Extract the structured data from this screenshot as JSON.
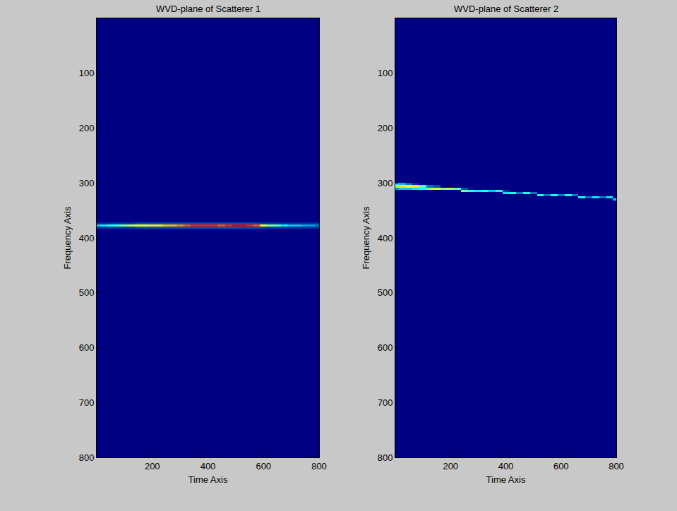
{
  "chart_data": [
    {
      "type": "heatmap",
      "title": "WVD-plane of Scatterer 1",
      "xlabel": "Time Axis",
      "ylabel": "Frequency Axis",
      "x": [
        0,
        25,
        50,
        75,
        100,
        125,
        150,
        175,
        200,
        225,
        250,
        275,
        300,
        325,
        350,
        375,
        400,
        425,
        450,
        475,
        500,
        525,
        550,
        575,
        600,
        625,
        650,
        675,
        700,
        725,
        750,
        775,
        800
      ],
      "y": [
        374,
        378,
        382
      ],
      "z": [
        [
          0.1,
          0.1,
          0.12,
          0.12,
          0.12,
          0.12,
          0.15,
          0.15,
          0.15,
          0.15,
          0.15,
          0.15,
          0.15,
          0.15,
          0.15,
          0.15,
          0.15,
          0.15,
          0.15,
          0.15,
          0.15,
          0.15,
          0.15,
          0.15,
          0.12,
          0.12,
          0.12,
          0.1,
          0.1,
          0.1,
          0.1,
          0.1,
          0.1
        ],
        [
          0.3,
          0.35,
          0.4,
          0.45,
          0.5,
          0.55,
          0.6,
          0.6,
          0.65,
          0.65,
          0.7,
          0.7,
          0.75,
          0.8,
          0.85,
          0.85,
          0.85,
          0.85,
          0.8,
          0.85,
          0.9,
          0.9,
          0.85,
          0.8,
          0.6,
          0.5,
          0.45,
          0.35,
          0.3,
          0.3,
          0.25,
          0.25,
          0.2
        ],
        [
          0.1,
          0.1,
          0.12,
          0.12,
          0.12,
          0.12,
          0.15,
          0.15,
          0.15,
          0.15,
          0.15,
          0.15,
          0.15,
          0.15,
          0.15,
          0.15,
          0.15,
          0.15,
          0.15,
          0.15,
          0.15,
          0.15,
          0.15,
          0.15,
          0.12,
          0.12,
          0.12,
          0.1,
          0.1,
          0.1,
          0.1,
          0.1,
          0.1
        ]
      ],
      "zlim": [
        0,
        1
      ],
      "xlim": [
        0,
        800
      ],
      "xticks": [
        200,
        400,
        600,
        800
      ],
      "ylim": [
        800,
        0
      ],
      "yticks": [
        100,
        200,
        300,
        400,
        500,
        600,
        700,
        800
      ],
      "grid": false
    },
    {
      "type": "heatmap",
      "title": "WVD-plane of Scatterer 2",
      "xlabel": "Time Axis",
      "ylabel": "Frequency Axis",
      "x": [
        0,
        25,
        50,
        75,
        100,
        125,
        150,
        175,
        200,
        225,
        250,
        275,
        300,
        325,
        350,
        375,
        400,
        425,
        450,
        475,
        500,
        525,
        550,
        575,
        600,
        625,
        650,
        675,
        700,
        725,
        750,
        775,
        800
      ],
      "y": [
        302,
        306,
        310,
        314,
        318,
        322,
        326,
        330
      ],
      "z": [
        [
          0.35,
          0.3,
          0.2,
          0.1,
          0,
          0,
          0,
          0,
          0,
          0,
          0,
          0,
          0,
          0,
          0,
          0,
          0,
          0,
          0,
          0,
          0,
          0,
          0,
          0,
          0,
          0,
          0,
          0,
          0,
          0,
          0,
          0,
          0
        ],
        [
          0.5,
          0.65,
          0.6,
          0.65,
          0.45,
          0.2,
          0.15,
          0,
          0,
          0,
          0,
          0,
          0,
          0,
          0,
          0,
          0,
          0,
          0,
          0,
          0,
          0,
          0,
          0,
          0,
          0,
          0,
          0,
          0,
          0,
          0,
          0,
          0
        ],
        [
          0.25,
          0.3,
          0.3,
          0.35,
          0.4,
          0.55,
          0.6,
          0.5,
          0.55,
          0.45,
          0.15,
          0,
          0,
          0,
          0,
          0,
          0,
          0,
          0,
          0,
          0,
          0,
          0,
          0,
          0,
          0,
          0,
          0,
          0,
          0,
          0,
          0,
          0
        ],
        [
          0,
          0,
          0,
          0,
          0,
          0,
          0,
          0,
          0,
          0,
          0.5,
          0.4,
          0.35,
          0.4,
          0.3,
          0.4,
          0.1,
          0,
          0,
          0,
          0,
          0,
          0,
          0,
          0,
          0,
          0,
          0,
          0,
          0,
          0,
          0,
          0
        ],
        [
          0,
          0,
          0,
          0,
          0,
          0,
          0,
          0,
          0,
          0,
          0,
          0,
          0,
          0,
          0,
          0,
          0.35,
          0.4,
          0.2,
          0.4,
          0.2,
          0,
          0,
          0,
          0,
          0,
          0,
          0,
          0,
          0,
          0,
          0,
          0
        ],
        [
          0,
          0,
          0,
          0,
          0,
          0,
          0,
          0,
          0,
          0,
          0,
          0,
          0,
          0,
          0,
          0,
          0,
          0,
          0,
          0,
          0,
          0.4,
          0.2,
          0.4,
          0.2,
          0.4,
          0.2,
          0,
          0,
          0,
          0,
          0,
          0
        ],
        [
          0,
          0,
          0,
          0,
          0,
          0,
          0,
          0,
          0,
          0,
          0,
          0,
          0,
          0,
          0,
          0,
          0,
          0,
          0,
          0,
          0,
          0,
          0,
          0,
          0,
          0,
          0,
          0.4,
          0.2,
          0.35,
          0.2,
          0.35,
          0
        ],
        [
          0,
          0,
          0,
          0,
          0,
          0,
          0,
          0,
          0,
          0,
          0,
          0,
          0,
          0,
          0,
          0,
          0,
          0,
          0,
          0,
          0,
          0,
          0,
          0,
          0,
          0,
          0,
          0,
          0,
          0,
          0,
          0,
          0.3
        ]
      ],
      "zlim": [
        0,
        1
      ],
      "xlim": [
        0,
        800
      ],
      "xticks": [
        200,
        400,
        600,
        800
      ],
      "ylim": [
        800,
        0
      ],
      "yticks": [
        100,
        200,
        300,
        400,
        500,
        600,
        700,
        800
      ],
      "grid": false
    }
  ]
}
